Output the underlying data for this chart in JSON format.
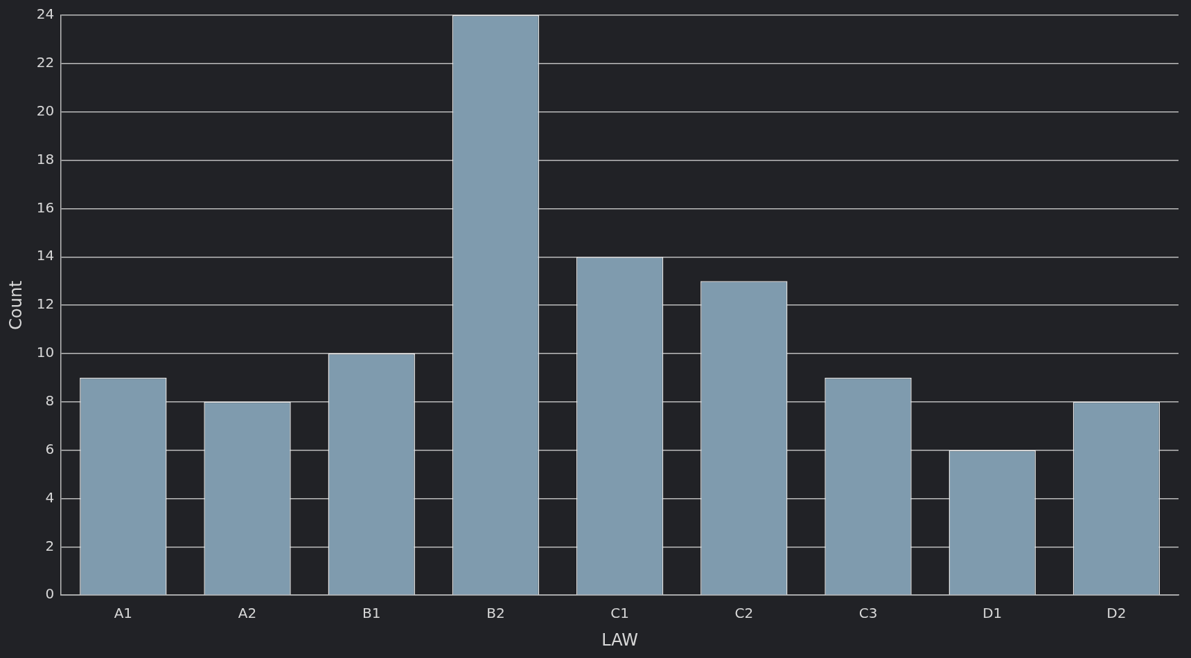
{
  "chart_data": {
    "type": "bar",
    "xlabel": "LAW",
    "ylabel": "Count",
    "categories": [
      "A1",
      "A2",
      "B1",
      "B2",
      "C1",
      "C2",
      "C3",
      "D1",
      "D2"
    ],
    "values": [
      9,
      8,
      10,
      24,
      14,
      13,
      9,
      6,
      8
    ],
    "color": "#7f9bae",
    "ylim": [
      0,
      24
    ],
    "yticks": [
      0,
      2,
      4,
      6,
      8,
      10,
      12,
      14,
      16,
      18,
      20,
      22,
      24
    ],
    "grid": "y"
  }
}
